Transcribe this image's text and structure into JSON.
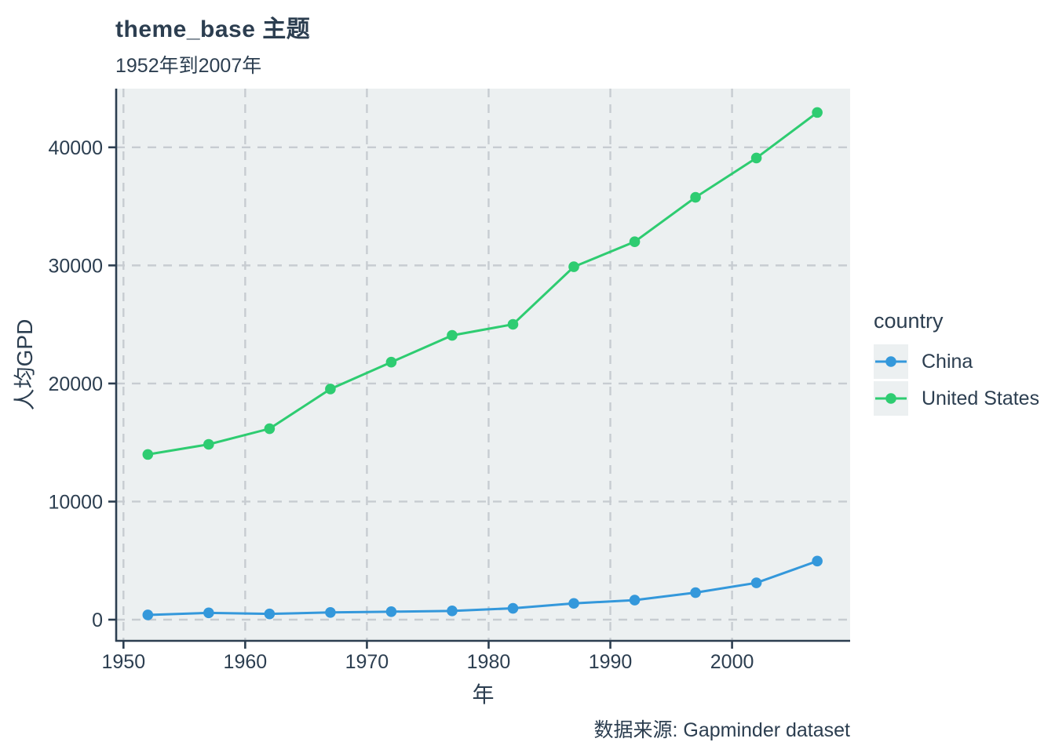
{
  "chart_data": {
    "type": "line",
    "title": "theme_base 主题",
    "subtitle": "1952年到2007年",
    "xlabel": "年",
    "ylabel": "人均GPD",
    "caption": "数据来源: Gapminder dataset",
    "legend": {
      "title": "country",
      "position": "right"
    },
    "x": [
      1952,
      1957,
      1962,
      1967,
      1972,
      1977,
      1982,
      1987,
      1992,
      1997,
      2002,
      2007
    ],
    "series": [
      {
        "name": "China",
        "color": "#3498db",
        "values": [
          400.45,
          575.99,
          487.67,
          612.72,
          676.9,
          741.24,
          962.42,
          1378.9,
          1655.78,
          2289.23,
          3119.28,
          4959.11
        ]
      },
      {
        "name": "United States",
        "color": "#2ecc71",
        "values": [
          13990.48,
          14847.13,
          16173.15,
          19530.37,
          21806.04,
          24072.63,
          25009.56,
          29884.35,
          32003.93,
          35767.43,
          39097.1,
          42951.65
        ]
      }
    ],
    "x_ticks": [
      1950,
      1960,
      1970,
      1980,
      1990,
      2000
    ],
    "y_ticks": [
      0,
      10000,
      20000,
      30000,
      40000
    ],
    "x_range": [
      1949.4,
      2009.7
    ],
    "y_range": [
      -1793,
      44970
    ],
    "grid": {
      "style": "dashed",
      "color": "#c7ccd1"
    },
    "panel_bg": "#ecf0f1",
    "axis_color": "#2c3e50",
    "text_color": "#2c3e50"
  }
}
